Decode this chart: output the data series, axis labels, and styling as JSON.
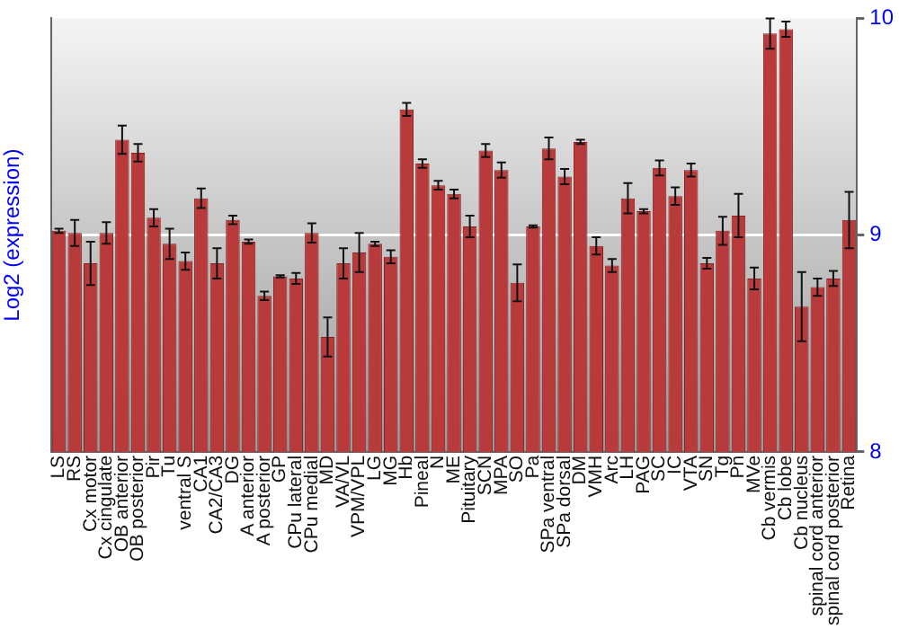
{
  "chart_data": {
    "type": "bar",
    "ylabel": "Log2 (expression)",
    "categories": [
      "LS",
      "RS",
      "Cx motor",
      "Cx cingulate",
      "OB anterior",
      "OB posterior",
      "Pir",
      "Tu",
      "ventral S",
      "CA1",
      "CA2/CA3",
      "DG",
      "A anterior",
      "A posterior",
      "GP",
      "CPu lateral",
      "CPu medial",
      "MD",
      "VA/VL",
      "VPM/VPL",
      "LG",
      "MG",
      "Hb",
      "Pineal",
      "N",
      "ME",
      "Pituitary",
      "SCN",
      "MPA",
      "SO",
      "Pa",
      "SPa ventral",
      "SPa dorsal",
      "DM",
      "VMH",
      "Arc",
      "LH",
      "PAG",
      "SC",
      "IC",
      "VTA",
      "SN",
      "Tg",
      "Pn",
      "MVe",
      "Cb vermis",
      "Cb lobe",
      "Cb nucleus",
      "spinal cord anterior",
      "spinal cord posterior",
      "Retina"
    ],
    "values": [
      9.02,
      9.01,
      8.87,
      9.01,
      9.44,
      9.38,
      9.08,
      8.96,
      8.88,
      9.17,
      8.87,
      9.07,
      8.97,
      8.72,
      8.81,
      8.8,
      9.01,
      8.53,
      8.87,
      8.92,
      8.96,
      8.9,
      9.58,
      9.33,
      9.23,
      9.19,
      9.04,
      9.39,
      9.3,
      8.78,
      9.04,
      9.4,
      9.27,
      9.43,
      8.95,
      8.86,
      9.17,
      9.11,
      9.31,
      9.18,
      9.3,
      8.87,
      9.02,
      9.09,
      8.8,
      9.93,
      9.95,
      8.67,
      8.76,
      8.8,
      9.07
    ],
    "errors": [
      0.01,
      0.06,
      0.1,
      0.05,
      0.065,
      0.04,
      0.04,
      0.07,
      0.04,
      0.045,
      0.07,
      0.02,
      0.01,
      0.02,
      0.005,
      0.025,
      0.045,
      0.09,
      0.07,
      0.09,
      0.01,
      0.03,
      0.03,
      0.02,
      0.02,
      0.02,
      0.05,
      0.03,
      0.035,
      0.085,
      0.005,
      0.05,
      0.035,
      0.01,
      0.04,
      0.03,
      0.07,
      0.01,
      0.035,
      0.04,
      0.03,
      0.025,
      0.065,
      0.1,
      0.05,
      0.07,
      0.035,
      0.16,
      0.04,
      0.035,
      0.13
    ],
    "color": "#b83a3a",
    "ylim": [
      8,
      10
    ],
    "yticks": [
      8,
      9,
      10
    ],
    "grid": "y",
    "legend": false
  }
}
